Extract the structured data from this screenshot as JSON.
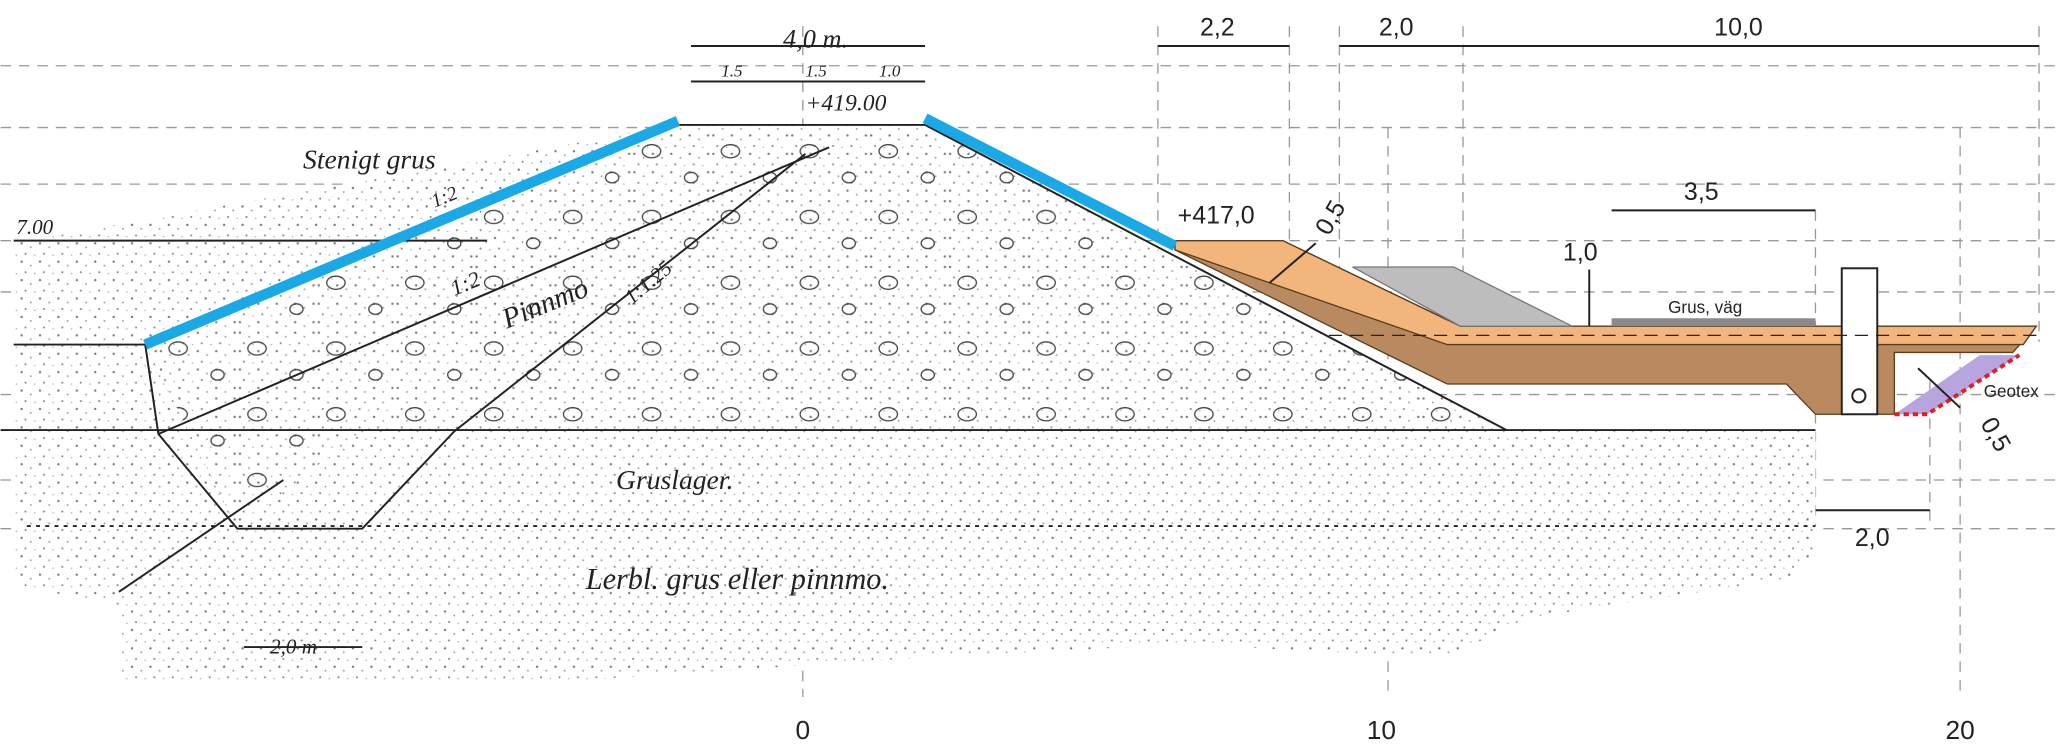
{
  "axis": {
    "ticks": [
      0,
      10,
      20
    ]
  },
  "old_section": {
    "crest_width": "4,0 m.",
    "crest_part_1": "1.5",
    "crest_part_2": "1.5",
    "crest_part_3": "1.0",
    "crest_level": "+419.00",
    "stony_gravel": "Stenigt grus",
    "slope_outer": "1:2",
    "slope_inner": "1:2",
    "till": "Pinnmo",
    "slope_core": "1:1.25",
    "water_level": "7.00",
    "gravel_layer": "Gruslager.",
    "subsoil": "Lerbl. grus eller pinnmo.",
    "trench_width": "2,0 m"
  },
  "new_section": {
    "dim_crest": "2,2",
    "dim_berm": "2,0",
    "dim_total": "10,0",
    "dim_road": "3,5",
    "level": "+417,0",
    "thickness_top": "0,5",
    "height_road": "1,0",
    "road_label": "Grus, väg",
    "geotextile": "Geotex",
    "thickness_toe": "0,5",
    "dim_toe": "2,0"
  }
}
